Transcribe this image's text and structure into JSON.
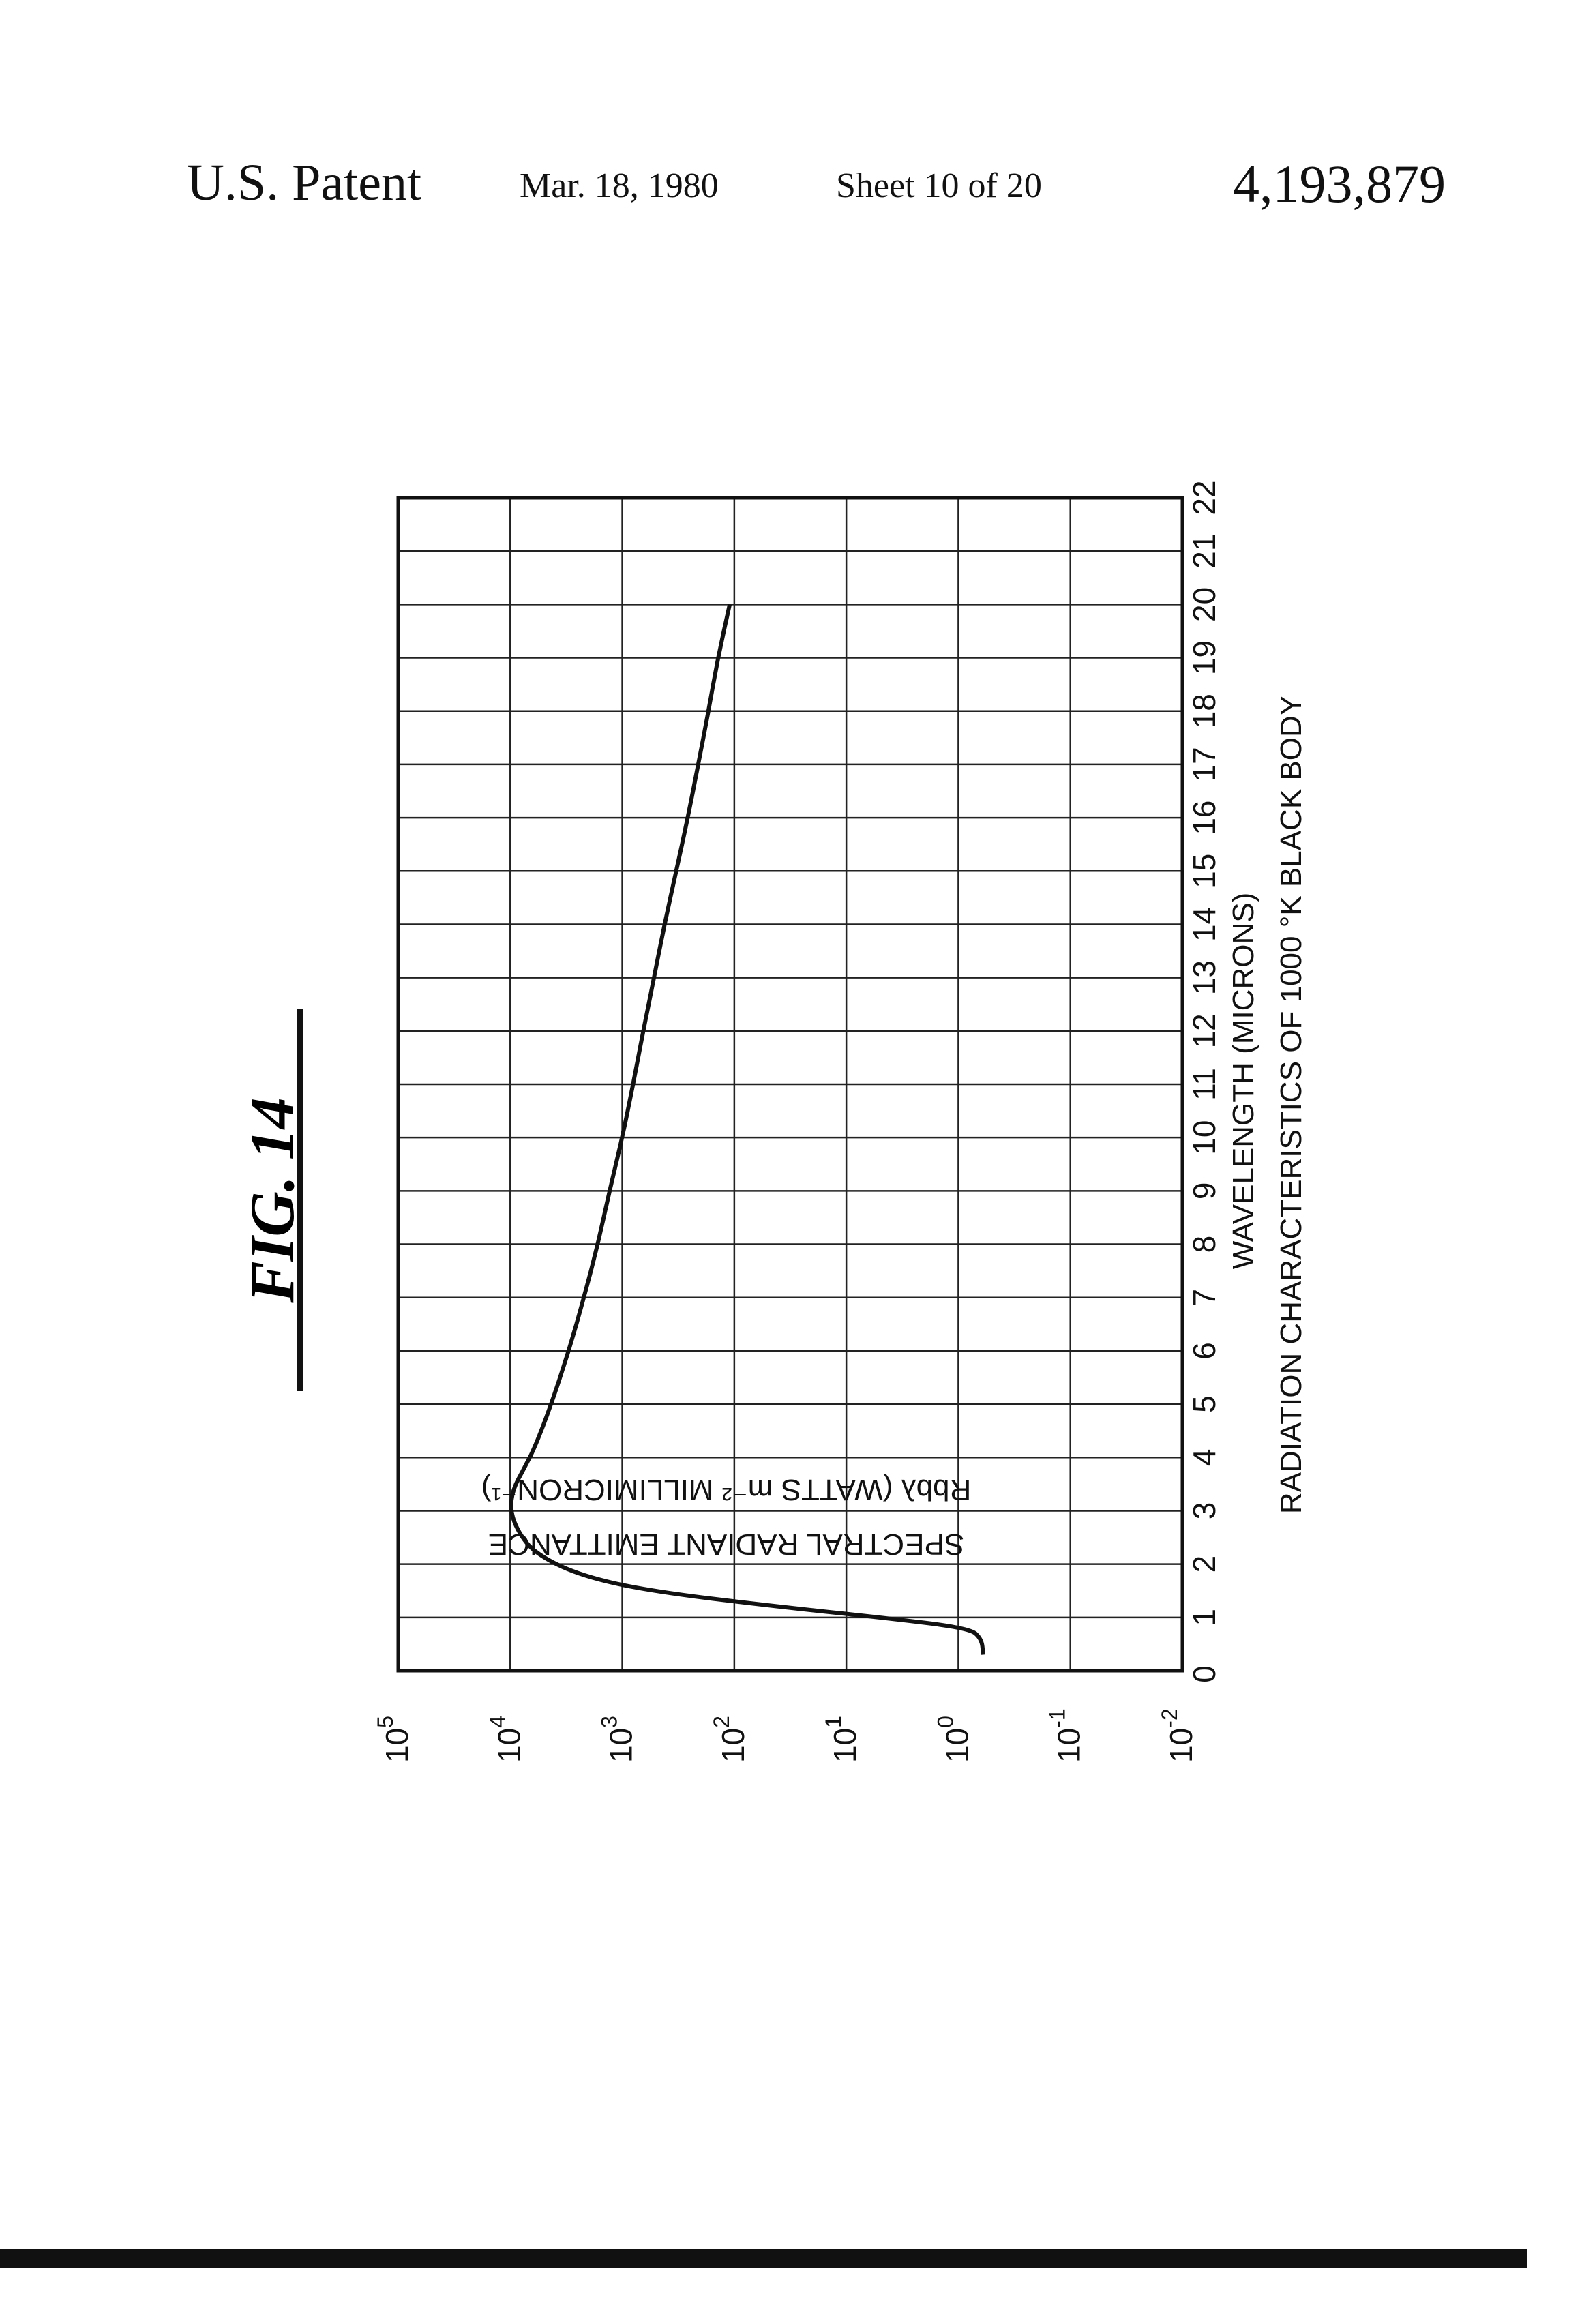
{
  "header": {
    "patent": "U.S. Patent",
    "date": "Mar. 18, 1980",
    "sheet": "Sheet 10 of 20",
    "number": "4,193,879"
  },
  "figure": {
    "label": "FIG. 14"
  },
  "chart_data": {
    "type": "line",
    "title": "RADIATION CHARACTERISTICS OF 1000 °K BLACK BODY",
    "xlabel": "WAVELENGTH (MICRONS)",
    "ylabel_line1": "SPECTRAL RADIANT EMITTANCE",
    "ylabel_line2": "Rbbλ (WATTS m⁻² MILLIMICRON⁻¹)",
    "x_scale": "linear",
    "y_scale": "log",
    "xlim": [
      0,
      22
    ],
    "ylim": [
      0.01,
      100000
    ],
    "x_ticks": [
      0,
      1,
      2,
      3,
      4,
      5,
      6,
      7,
      8,
      9,
      10,
      11,
      12,
      13,
      14,
      15,
      16,
      17,
      18,
      19,
      20,
      21,
      22
    ],
    "y_ticks": [
      {
        "base": "10",
        "exp": "5"
      },
      {
        "base": "10",
        "exp": "4"
      },
      {
        "base": "10",
        "exp": "3"
      },
      {
        "base": "10",
        "exp": "2"
      },
      {
        "base": "10",
        "exp": "1"
      },
      {
        "base": "10",
        "exp": "0"
      },
      {
        "base": "10",
        "exp": "-1"
      },
      {
        "base": "10",
        "exp": "-2"
      }
    ],
    "grid": true,
    "series": [
      {
        "x": [
          0.3,
          0.6,
          0.8,
          1.0,
          1.2,
          1.5,
          1.8,
          2.2,
          2.6,
          3.0,
          3.4,
          3.8,
          4.2,
          5.0,
          6.0,
          7.0,
          8.0,
          9.0,
          10.0,
          11.0,
          12.0,
          13.0,
          14.0,
          15.0,
          16.0,
          17.0,
          18.0,
          19.0,
          20.0
        ],
        "y": [
          0.6,
          0.62,
          0.8,
          5,
          40,
          600,
          2500,
          6000,
          8500,
          10000,
          9500,
          7500,
          6000,
          4300,
          3000,
          2200,
          1650,
          1300,
          1000,
          800,
          650,
          520,
          420,
          330,
          260,
          210,
          170,
          140,
          110
        ]
      }
    ]
  }
}
